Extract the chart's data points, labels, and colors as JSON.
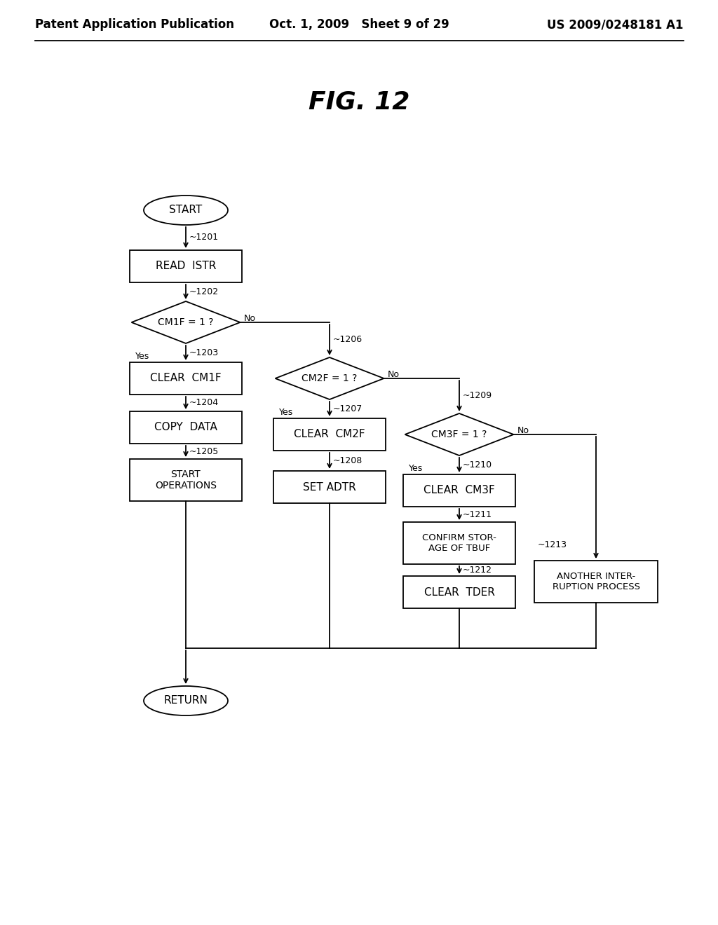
{
  "background_color": "#ffffff",
  "title": "FIG. 12",
  "title_fontsize": 26,
  "header_left": "Patent Application Publication",
  "header_center": "Oct. 1, 2009   Sheet 9 of 29",
  "header_right": "US 2009/0248181 A1",
  "header_fontsize": 12
}
